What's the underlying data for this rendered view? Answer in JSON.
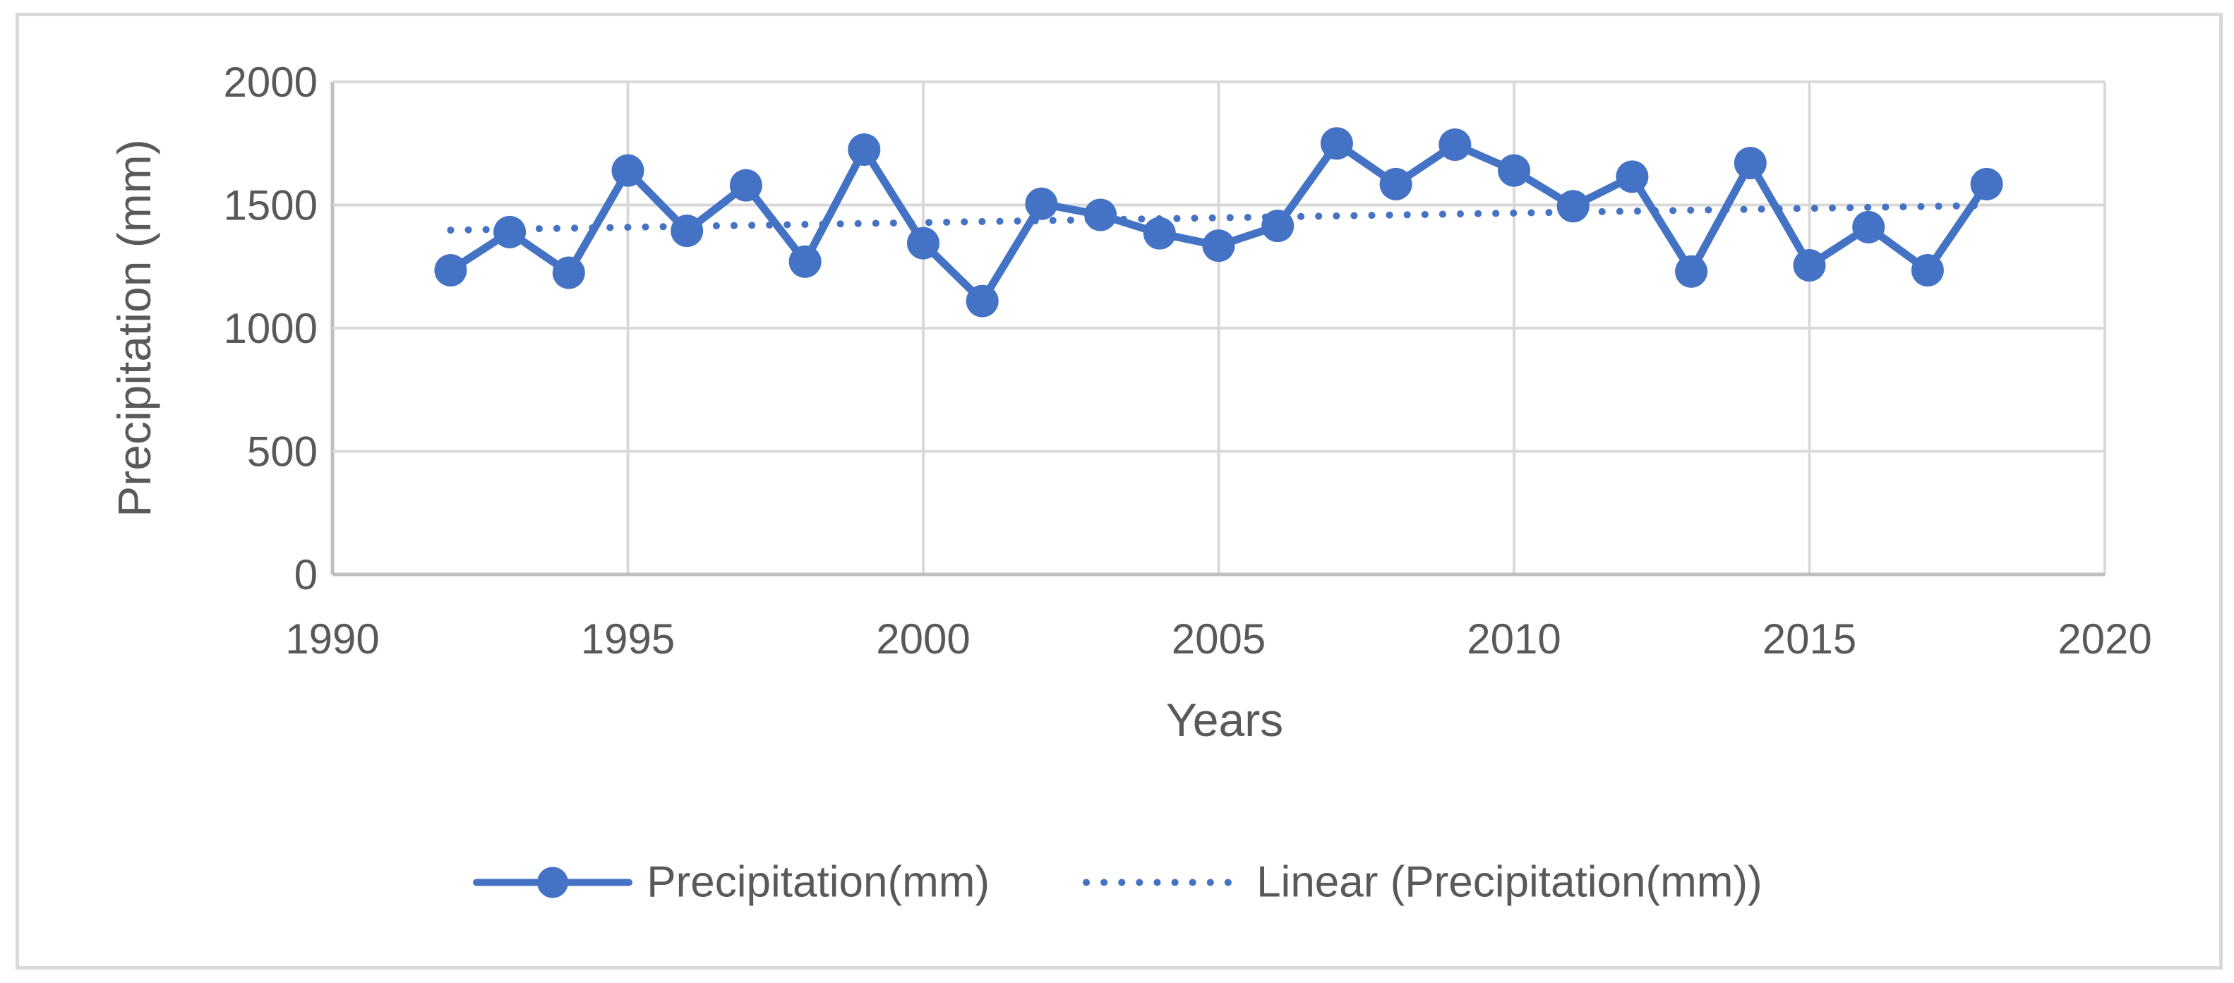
{
  "chart": {
    "y_axis_title": "Precipitation (mm)",
    "x_axis_title": "Years",
    "legend": [
      {
        "label": "Precipitation(mm)",
        "style": "solid-line-with-marker"
      },
      {
        "label": "Linear (Precipitation(mm))",
        "style": "dotted-line"
      }
    ],
    "colors": {
      "series": "#4472C4",
      "grid": "#D9D9D9",
      "axis": "#BFBFBF",
      "text": "#595959",
      "border": "#D9D9D9"
    }
  },
  "chart_data": {
    "type": "line",
    "title": "",
    "xlabel": "Years",
    "ylabel": "Precipitation (mm)",
    "x": [
      1992,
      1993,
      1994,
      1995,
      1996,
      1997,
      1998,
      1999,
      2000,
      2001,
      2002,
      2003,
      2004,
      2005,
      2006,
      2007,
      2008,
      2009,
      2010,
      2011,
      2012,
      2013,
      2014,
      2015,
      2016,
      2017,
      2018
    ],
    "series": [
      {
        "name": "Precipitation(mm)",
        "values": [
          1235,
          1390,
          1225,
          1640,
          1395,
          1580,
          1270,
          1725,
          1345,
          1110,
          1505,
          1460,
          1385,
          1335,
          1415,
          1750,
          1585,
          1745,
          1640,
          1495,
          1615,
          1230,
          1670,
          1255,
          1410,
          1235,
          1585
        ]
      }
    ],
    "trendline": {
      "name": "Linear (Precipitation(mm))",
      "x_start": 1992,
      "y_start": 1398,
      "x_end": 2018,
      "y_end": 1498
    },
    "xlim": [
      1990,
      2020
    ],
    "ylim": [
      0,
      2000
    ],
    "x_ticks": [
      1990,
      1995,
      2000,
      2005,
      2010,
      2015,
      2020
    ],
    "y_ticks": [
      0,
      500,
      1000,
      1500,
      2000
    ],
    "grid": true,
    "marker": "circle",
    "legend_position": "bottom"
  }
}
